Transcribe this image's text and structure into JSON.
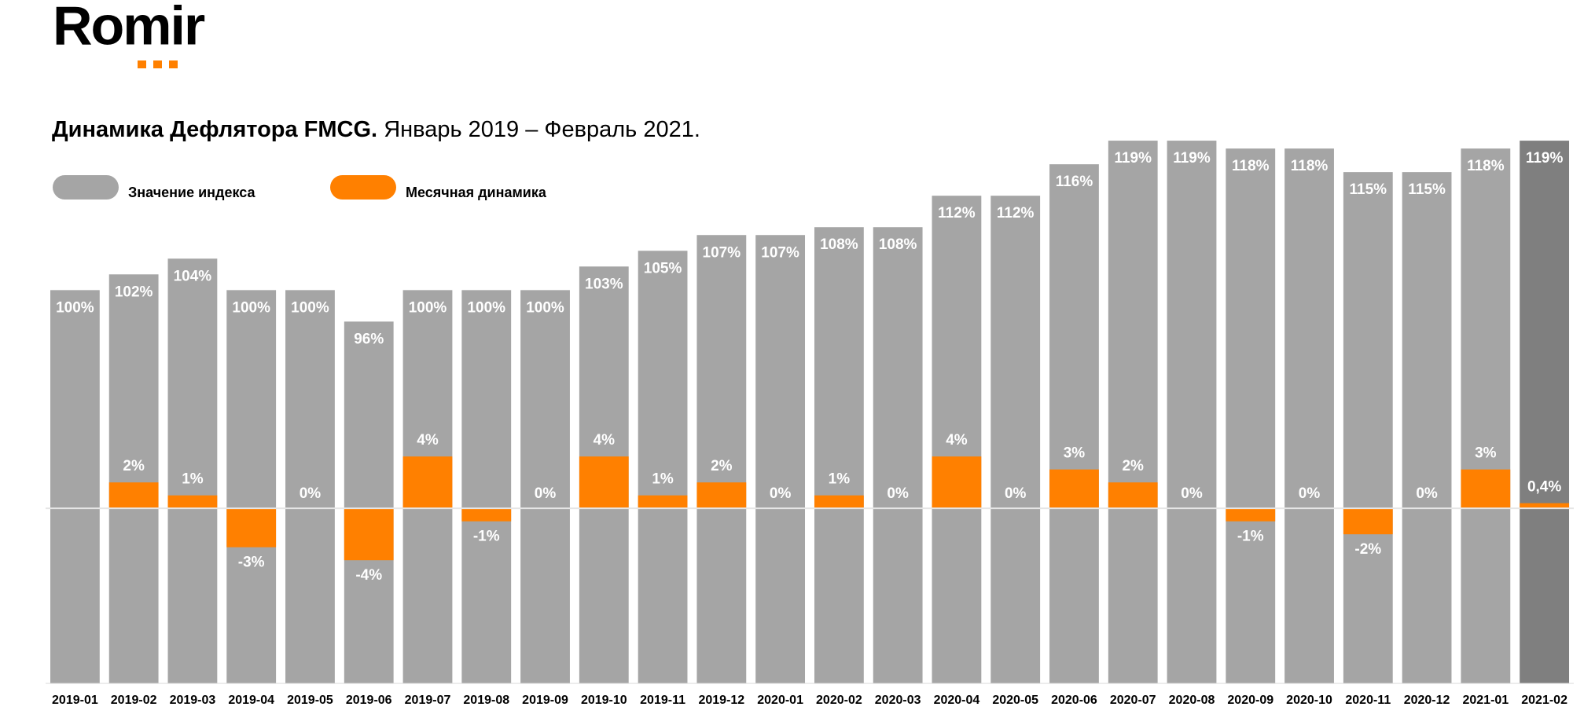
{
  "brand": "Romir",
  "chart_data": {
    "type": "bar",
    "title": "Динамика Дефлятора FMCG.",
    "subtitle": "Январь 2019 – Февраль 2021.",
    "categories": [
      "2019-01",
      "2019-02",
      "2019-03",
      "2019-04",
      "2019-05",
      "2019-06",
      "2019-07",
      "2019-08",
      "2019-09",
      "2019-10",
      "2019-11",
      "2019-12",
      "2020-01",
      "2020-02",
      "2020-03",
      "2020-04",
      "2020-05",
      "2020-06",
      "2020-07",
      "2020-08",
      "2020-09",
      "2020-10",
      "2020-11",
      "2020-12",
      "2021-01",
      "2021-02"
    ],
    "series": [
      {
        "name": "Значение индекса",
        "color": "#a5a5a5",
        "colors": [
          "#a5a5a5",
          "#a5a5a5",
          "#a5a5a5",
          "#a5a5a5",
          "#a5a5a5",
          "#a5a5a5",
          "#a5a5a5",
          "#a5a5a5",
          "#a5a5a5",
          "#a5a5a5",
          "#a5a5a5",
          "#a5a5a5",
          "#a5a5a5",
          "#a5a5a5",
          "#a5a5a5",
          "#a5a5a5",
          "#a5a5a5",
          "#a5a5a5",
          "#a5a5a5",
          "#a5a5a5",
          "#a5a5a5",
          "#a5a5a5",
          "#a5a5a5",
          "#a5a5a5",
          "#a5a5a5",
          "#7f7f7f"
        ],
        "values": [
          100,
          102,
          104,
          100,
          100,
          96,
          100,
          100,
          100,
          103,
          105,
          107,
          107,
          108,
          108,
          112,
          112,
          116,
          119,
          119,
          118,
          118,
          115,
          115,
          118,
          119
        ],
        "value_labels": [
          "100%",
          "102%",
          "104%",
          "100%",
          "100%",
          "96%",
          "100%",
          "100%",
          "100%",
          "103%",
          "105%",
          "107%",
          "107%",
          "108%",
          "108%",
          "112%",
          "112%",
          "116%",
          "119%",
          "119%",
          "118%",
          "118%",
          "115%",
          "115%",
          "118%",
          "119%"
        ]
      },
      {
        "name": "Месячная динамика",
        "color": "#ff8000",
        "axis": "y2",
        "values": [
          null,
          2,
          1,
          -3,
          0,
          -4,
          4,
          -1,
          0,
          4,
          1,
          2,
          0,
          1,
          0,
          4,
          0,
          3,
          2,
          0,
          -1,
          0,
          -2,
          0,
          3,
          0.4
        ],
        "value_labels": [
          null,
          "2%",
          "1%",
          "-3%",
          "0%",
          "-4%",
          "4%",
          "-1%",
          "0%",
          "4%",
          "1%",
          "2%",
          "0%",
          "1%",
          "0%",
          "4%",
          "0%",
          "3%",
          "2%",
          "0%",
          "-1%",
          "0%",
          "-2%",
          "0%",
          "3%",
          "0,4%"
        ]
      }
    ],
    "ylim": [
      50,
      125
    ],
    "y2lim": [
      -13.5,
      32
    ]
  }
}
